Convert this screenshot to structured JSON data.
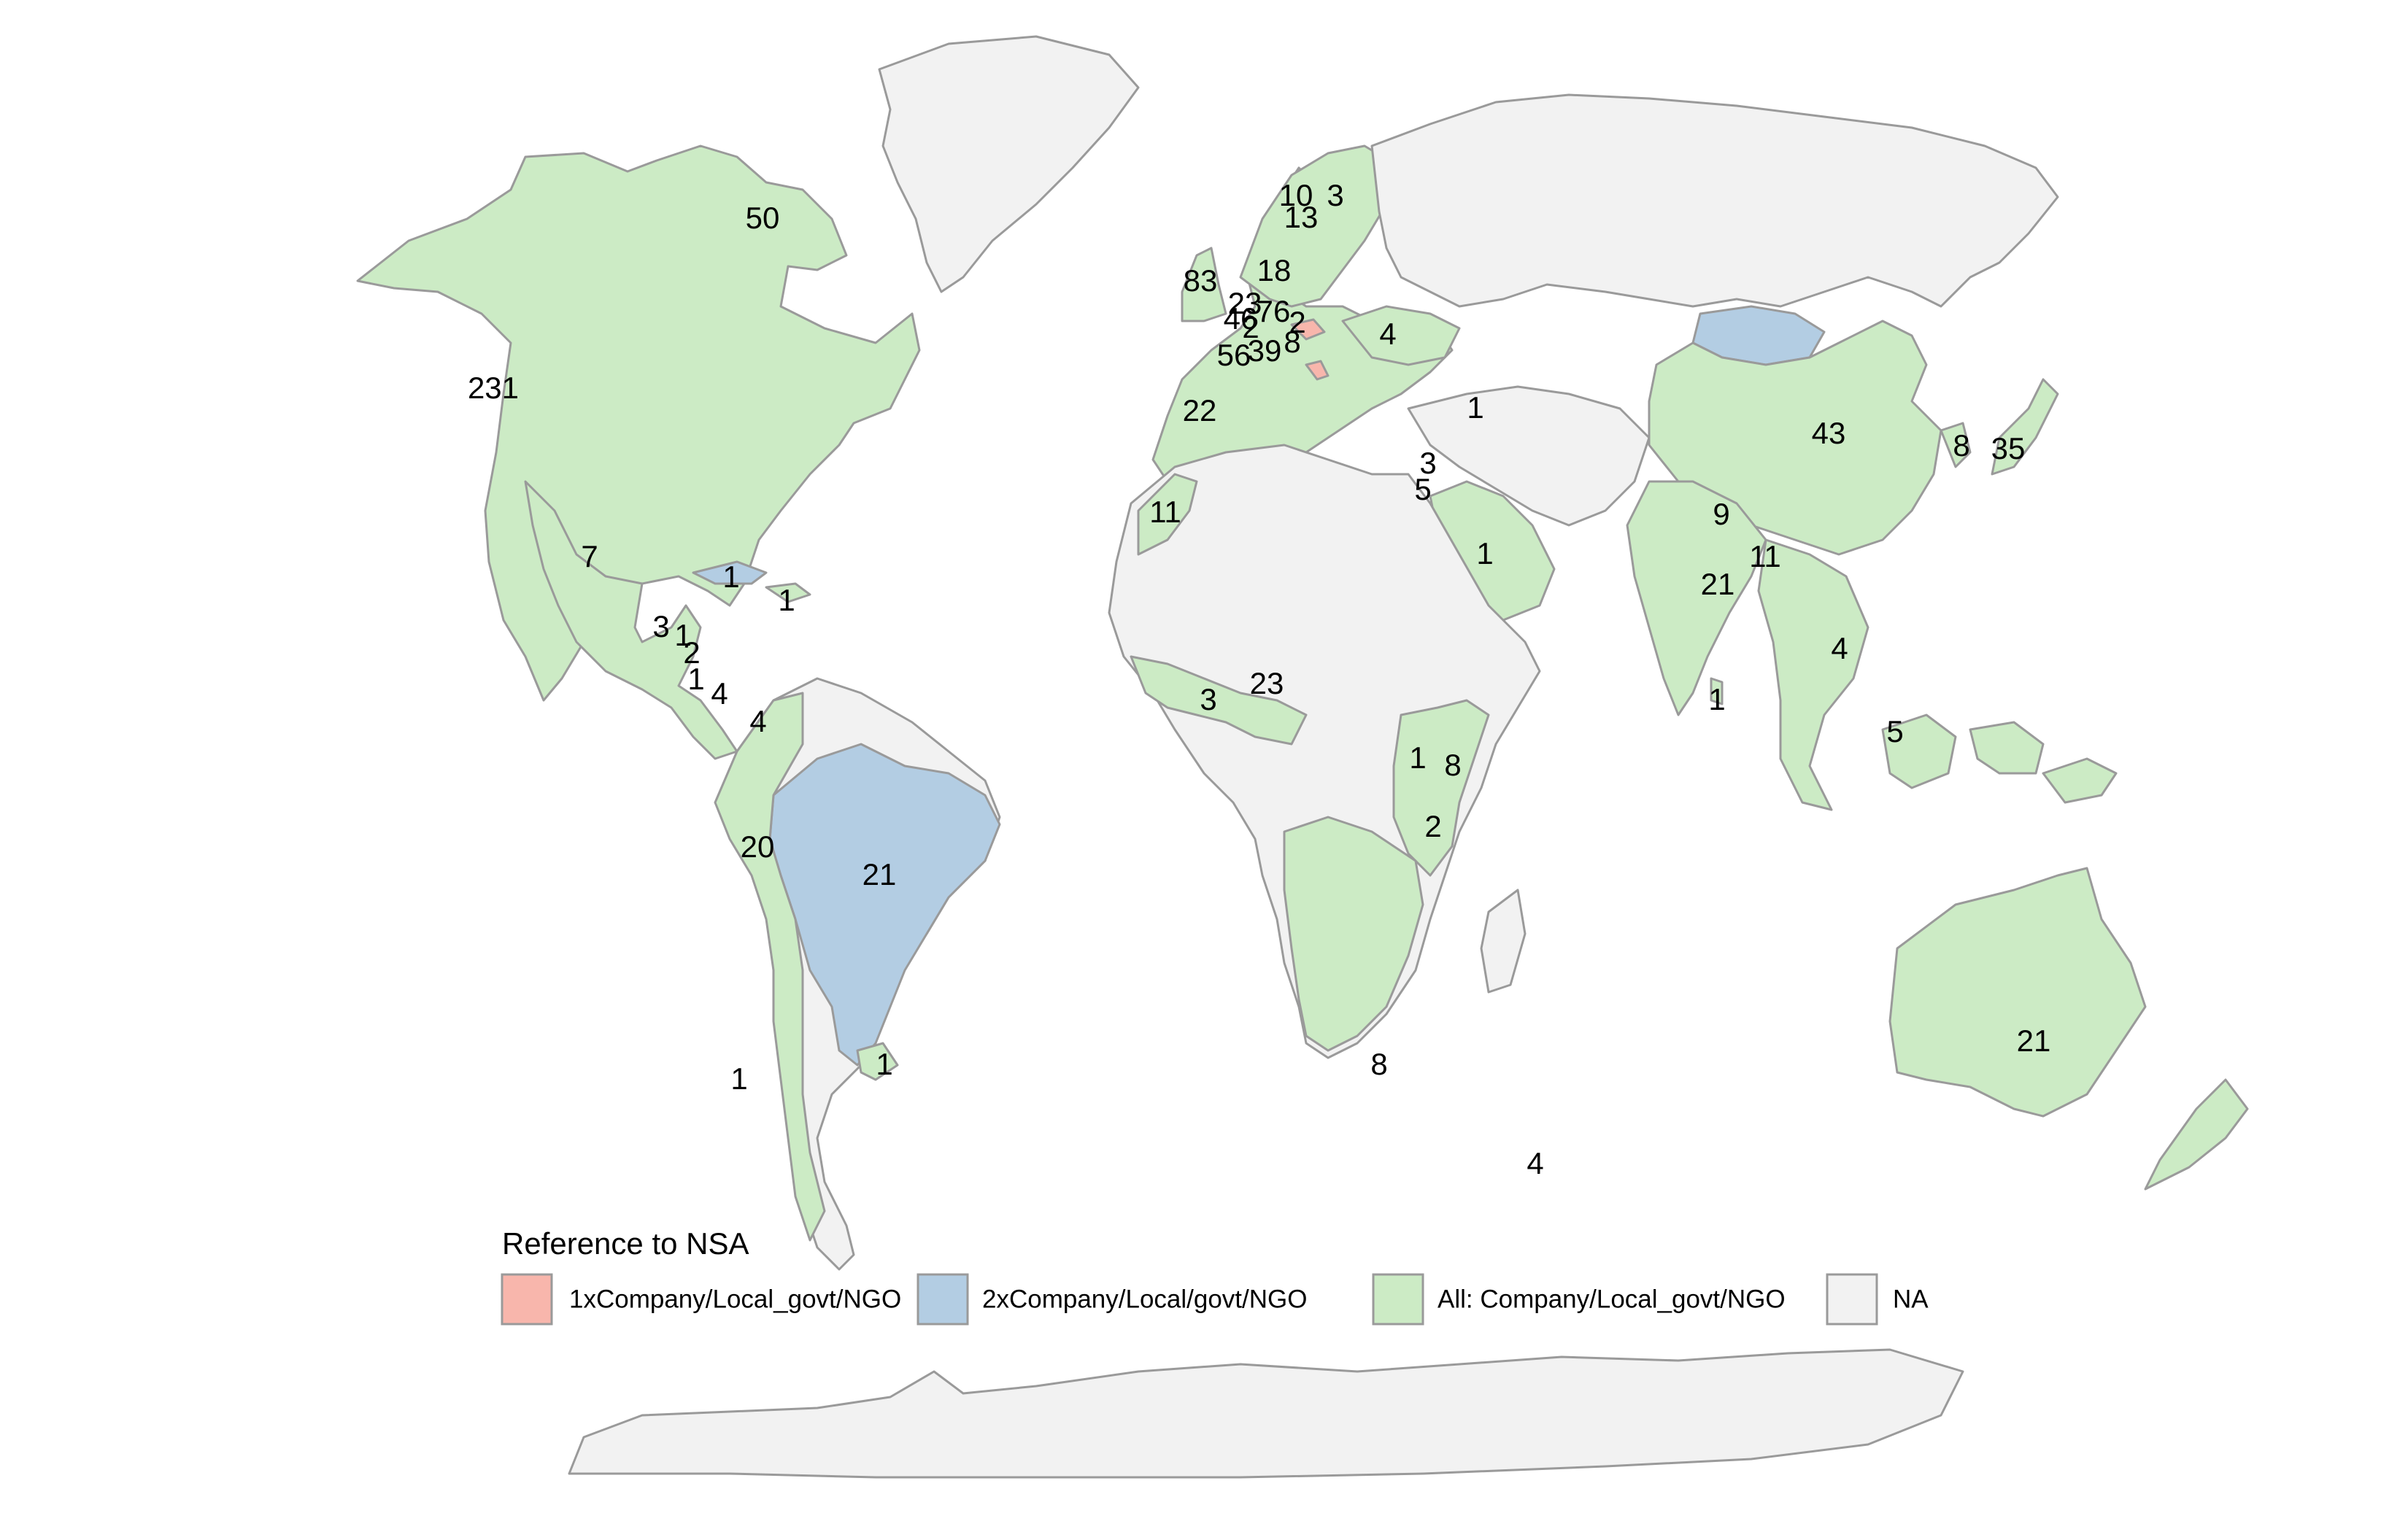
{
  "colors": {
    "one_x": "#f8b6ac",
    "two_x": "#b3cde3",
    "all": "#ccebc5",
    "na": "#f2f2f2",
    "border": "#9a9a9a"
  },
  "legend": {
    "title": "Reference to NSA",
    "items": [
      {
        "key": "one_x",
        "label": "1xCompany/Local_govt/NGO"
      },
      {
        "key": "two_x",
        "label": "2xCompany/Local/govt/NGO"
      },
      {
        "key": "all",
        "label": "All: Company/Local_govt/NGO"
      },
      {
        "key": "na",
        "label": "NA"
      }
    ]
  },
  "counts": [
    {
      "region": "canada-north",
      "value": "50"
    },
    {
      "region": "usa-west",
      "value": "231"
    },
    {
      "region": "mexico",
      "value": "7"
    },
    {
      "region": "cuba",
      "value": "1"
    },
    {
      "region": "dominican-republic",
      "value": "1"
    },
    {
      "region": "guatemala",
      "value": "3"
    },
    {
      "region": "honduras",
      "value": "1"
    },
    {
      "region": "nicaragua",
      "value": "2"
    },
    {
      "region": "costa-rica",
      "value": "1"
    },
    {
      "region": "panama",
      "value": "4"
    },
    {
      "region": "colombia",
      "value": "4"
    },
    {
      "region": "peru",
      "value": "20"
    },
    {
      "region": "brazil",
      "value": "21"
    },
    {
      "region": "uruguay",
      "value": "1"
    },
    {
      "region": "chile-ocean",
      "value": "1"
    },
    {
      "region": "uk",
      "value": "83"
    },
    {
      "region": "norway",
      "value": "10"
    },
    {
      "region": "finland",
      "value": "3"
    },
    {
      "region": "sweden",
      "value": "13"
    },
    {
      "region": "denmark",
      "value": "18"
    },
    {
      "region": "netherlands",
      "value": "23"
    },
    {
      "region": "germany",
      "value": "76"
    },
    {
      "region": "belgium",
      "value": "46"
    },
    {
      "region": "luxembourg",
      "value": "2"
    },
    {
      "region": "czechia",
      "value": "2"
    },
    {
      "region": "france",
      "value": "56"
    },
    {
      "region": "switzerland",
      "value": "39"
    },
    {
      "region": "austria",
      "value": "8"
    },
    {
      "region": "ukraine",
      "value": "4"
    },
    {
      "region": "spain",
      "value": "22"
    },
    {
      "region": "georgia",
      "value": "1"
    },
    {
      "region": "lebanon",
      "value": "3"
    },
    {
      "region": "israel",
      "value": "5"
    },
    {
      "region": "morocco",
      "value": "11"
    },
    {
      "region": "saudi-arabia",
      "value": "1"
    },
    {
      "region": "ghana",
      "value": "3"
    },
    {
      "region": "nigeria",
      "value": "23"
    },
    {
      "region": "uganda",
      "value": "1"
    },
    {
      "region": "kenya",
      "value": "8"
    },
    {
      "region": "tanzania",
      "value": "2"
    },
    {
      "region": "south-africa",
      "value": "8"
    },
    {
      "region": "china",
      "value": "43"
    },
    {
      "region": "south-korea",
      "value": "8"
    },
    {
      "region": "japan",
      "value": "35"
    },
    {
      "region": "nepal",
      "value": "9"
    },
    {
      "region": "bangladesh",
      "value": "11"
    },
    {
      "region": "india",
      "value": "21"
    },
    {
      "region": "thailand",
      "value": "4"
    },
    {
      "region": "sri-lanka",
      "value": "1"
    },
    {
      "region": "malaysia",
      "value": "5"
    },
    {
      "region": "australia",
      "value": "21"
    },
    {
      "region": "indian-ocean",
      "value": "4"
    }
  ]
}
